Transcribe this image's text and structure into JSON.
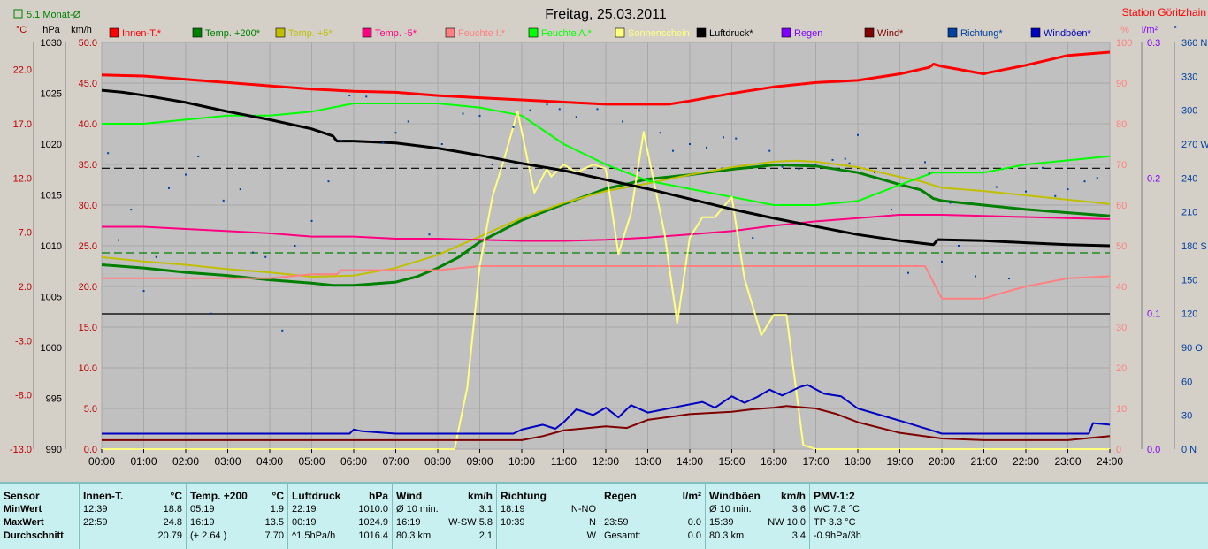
{
  "chart_data": {
    "type": "line",
    "title": "Freitag, 25.03.2011",
    "station": "Station Göritzhain",
    "monthly_avg_label": "5.1 Monat-Ø",
    "x_ticks": [
      "00:00",
      "01:00",
      "02:00",
      "03:00",
      "04:00",
      "05:00",
      "06:00",
      "07:00",
      "08:00",
      "09:00",
      "10:00",
      "11:00",
      "12:00",
      "13:00",
      "14:00",
      "15:00",
      "16:00",
      "17:00",
      "18:00",
      "19:00",
      "20:00",
      "21:00",
      "22:00",
      "23:00",
      "24:00"
    ],
    "axes": {
      "celsius": {
        "unit": "°C",
        "ticks": [
          "22.0",
          "17.0",
          "12.0",
          "7.0",
          "2.0",
          "-3.0",
          "-8.0",
          "-13.0"
        ],
        "range": [
          -13,
          24.5
        ]
      },
      "hpa": {
        "unit": "hPa",
        "ticks": [
          "1030",
          "1025",
          "1020",
          "1015",
          "1010",
          "1005",
          "1000",
          "995",
          "990"
        ],
        "range": [
          990,
          1030
        ]
      },
      "kmh": {
        "unit": "km/h",
        "ticks": [
          "50.0",
          "45.0",
          "40.0",
          "35.0",
          "30.0",
          "25.0",
          "20.0",
          "15.0",
          "10.0",
          "5.0",
          "0.0"
        ],
        "range": [
          0,
          50
        ]
      },
      "percent": {
        "unit": "%",
        "ticks": [
          "100",
          "90",
          "80",
          "70",
          "60",
          "50",
          "40",
          "30",
          "20",
          "10",
          "0"
        ],
        "range": [
          0,
          100
        ]
      },
      "rain": {
        "unit": "l/m²",
        "ticks": [
          "0.3",
          "0.2",
          "0.1",
          "0.0"
        ],
        "range": [
          0,
          0.3
        ]
      },
      "direction": {
        "unit": "°",
        "ticks": [
          "360 N",
          "330",
          "300",
          "270 W",
          "240",
          "210",
          "180 S",
          "150",
          "120",
          "90 O",
          "60",
          "30",
          "0 N"
        ],
        "range": [
          0,
          360
        ]
      }
    },
    "legend": [
      {
        "name": "Innen-T.*",
        "color": "#ff0000"
      },
      {
        "name": "Temp. +200*",
        "color": "#008000"
      },
      {
        "name": "Temp. +5*",
        "color": "#c0c000"
      },
      {
        "name": "Temp. -5*",
        "color": "#ff0080"
      },
      {
        "name": "Feuchte I.*",
        "color": "#ff8080"
      },
      {
        "name": "Feuchte A.*",
        "color": "#00ff00"
      },
      {
        "name": "Sonnenschein",
        "color": "#ffff80"
      },
      {
        "name": "Luftdruck*",
        "color": "#000000"
      },
      {
        "name": "Regen",
        "color": "#8000ff"
      },
      {
        "name": "Wind*",
        "color": "#800000"
      },
      {
        "name": "Richtung*",
        "color": "#0040a0"
      },
      {
        "name": "Windböen*",
        "color": "#0000c0"
      }
    ],
    "reference_lines": [
      {
        "axis": "celsius",
        "value": 12.9,
        "color": "#000000",
        "style": "dashed"
      },
      {
        "axis": "celsius",
        "value": 5.1,
        "color": "#008000",
        "style": "dashed"
      }
    ],
    "series": [
      {
        "name": "Innen-T.*",
        "axis": "celsius",
        "color": "#ff0000",
        "width": 3,
        "x": [
          0,
          1,
          2,
          3,
          4,
          5,
          6,
          7,
          8,
          9,
          10,
          11,
          12,
          13,
          13.5,
          14,
          15,
          16,
          17,
          18,
          19,
          19.7,
          19.8,
          20,
          21,
          21.1,
          22,
          23,
          24
        ],
        "values": [
          21.5,
          21.4,
          21.1,
          20.8,
          20.5,
          20.2,
          20.0,
          19.9,
          19.6,
          19.4,
          19.2,
          19.0,
          18.8,
          18.8,
          18.8,
          19.1,
          19.8,
          20.4,
          20.8,
          21.0,
          21.6,
          22.2,
          22.5,
          22.3,
          21.6,
          21.7,
          22.4,
          23.3,
          23.6
        ]
      },
      {
        "name": "Temp. +200*",
        "axis": "celsius",
        "color": "#008000",
        "width": 3,
        "x": [
          0,
          1,
          2,
          3,
          4,
          5,
          5.5,
          6,
          7,
          7.5,
          8,
          8.5,
          9,
          10,
          11,
          12,
          13,
          14,
          15,
          16,
          16.2,
          17,
          18,
          19,
          19.5,
          19.8,
          20,
          21,
          22,
          23,
          24
        ],
        "values": [
          4.0,
          3.7,
          3.3,
          3.0,
          2.6,
          2.3,
          2.1,
          2.1,
          2.4,
          2.9,
          3.7,
          4.7,
          6.1,
          8.1,
          9.6,
          11.0,
          11.9,
          12.3,
          12.8,
          13.2,
          13.2,
          13.1,
          12.5,
          11.4,
          10.9,
          10.1,
          9.9,
          9.5,
          9.1,
          8.8,
          8.5
        ]
      },
      {
        "name": "Temp. +5*",
        "axis": "celsius",
        "color": "#c0c000",
        "width": 2,
        "x": [
          0,
          1,
          2,
          3,
          4,
          5,
          6,
          7,
          8,
          9,
          10,
          11,
          12,
          13,
          14,
          15,
          16,
          16.5,
          17,
          18,
          19,
          19.5,
          20,
          21,
          22,
          23,
          24
        ],
        "values": [
          4.7,
          4.3,
          4.0,
          3.6,
          3.3,
          2.9,
          3.0,
          3.7,
          4.9,
          6.6,
          8.3,
          9.7,
          10.8,
          11.5,
          12.3,
          13.0,
          13.5,
          13.6,
          13.5,
          13.0,
          12.1,
          11.7,
          11.1,
          10.8,
          10.4,
          10.0,
          9.6
        ]
      },
      {
        "name": "Temp. -5*",
        "axis": "celsius",
        "color": "#ff0080",
        "width": 2,
        "x": [
          0,
          1,
          2,
          3,
          4,
          5,
          6,
          7,
          8,
          9,
          10,
          11,
          12,
          13,
          14,
          15,
          16,
          17,
          18,
          19,
          20,
          21,
          22,
          23,
          24
        ],
        "values": [
          7.5,
          7.5,
          7.3,
          7.1,
          6.9,
          6.6,
          6.6,
          6.4,
          6.4,
          6.3,
          6.2,
          6.2,
          6.3,
          6.5,
          6.8,
          7.1,
          7.6,
          8.0,
          8.3,
          8.6,
          8.6,
          8.5,
          8.4,
          8.3,
          8.2
        ]
      },
      {
        "name": "Feuchte I.*",
        "axis": "percent",
        "color": "#ff8080",
        "width": 2,
        "x": [
          0,
          1,
          2,
          3,
          4,
          5,
          5.6,
          5.7,
          6,
          7,
          8,
          9,
          10,
          11,
          12,
          13,
          14,
          15,
          16,
          17,
          18,
          19,
          19.6,
          19.8,
          20,
          21,
          21.3,
          22,
          23,
          24
        ],
        "values": [
          42,
          42,
          42,
          42,
          42,
          43,
          43,
          44,
          44,
          44,
          44,
          45,
          45,
          45,
          45,
          45,
          45,
          45,
          45,
          45,
          45,
          45,
          45,
          41,
          37,
          37,
          38,
          40,
          42,
          42.5
        ]
      },
      {
        "name": "Feuchte A.*",
        "axis": "percent",
        "color": "#00ff00",
        "width": 2,
        "x": [
          0,
          1,
          2,
          3,
          4,
          5,
          6,
          7,
          8,
          9,
          9.5,
          10,
          11,
          12,
          13,
          14,
          15,
          16,
          17,
          18,
          19,
          19.8,
          20,
          21,
          22,
          23,
          24
        ],
        "values": [
          80,
          80,
          81,
          82,
          82,
          83,
          85,
          85,
          85,
          84,
          83,
          82,
          75,
          70,
          66,
          64,
          62,
          60,
          60,
          61,
          65,
          68,
          68,
          68,
          70,
          71,
          72
        ]
      },
      {
        "name": "Sonnenschein",
        "axis": "percent",
        "color": "#ffff80",
        "width": 2,
        "x": [
          0,
          8.4,
          8.7,
          9,
          9.3,
          9.6,
          9.9,
          10.3,
          10.6,
          10.7,
          11,
          11.3,
          11.7,
          12,
          12.3,
          12.6,
          12.9,
          13.2,
          13.4,
          13.7,
          14,
          14.3,
          14.6,
          15,
          15.3,
          15.7,
          16,
          16.3,
          16.7,
          17,
          24
        ],
        "values": [
          0,
          0,
          15,
          45,
          62,
          72,
          83,
          63,
          69,
          67,
          70,
          68,
          70,
          69,
          48,
          58,
          78,
          63,
          53,
          31,
          52,
          57,
          57,
          62,
          42,
          28,
          33,
          33,
          1,
          0,
          0
        ]
      },
      {
        "name": "Luftdruck*",
        "axis": "hpa",
        "color": "#000000",
        "width": 3,
        "x": [
          0,
          0.5,
          1,
          2,
          3,
          4,
          5,
          5.5,
          5.6,
          6,
          7,
          8,
          9,
          10,
          11,
          12,
          13,
          14,
          15,
          16,
          17,
          18,
          19,
          19.8,
          19.9,
          21,
          22,
          23,
          24
        ],
        "values": [
          1025.3,
          1025.1,
          1024.8,
          1024.1,
          1023.2,
          1022.4,
          1021.5,
          1020.8,
          1020.3,
          1020.3,
          1020.1,
          1019.6,
          1018.9,
          1018.1,
          1017.4,
          1016.5,
          1015.6,
          1014.6,
          1013.6,
          1012.7,
          1011.9,
          1011.1,
          1010.5,
          1010.1,
          1010.6,
          1010.5,
          1010.3,
          1010.1,
          1010.0
        ]
      },
      {
        "name": "Wind*",
        "axis": "kmh",
        "color": "#800000",
        "width": 2,
        "x": [
          0,
          1,
          2,
          3,
          4,
          5,
          6,
          7,
          8,
          9,
          10,
          10.5,
          11,
          12,
          12.5,
          13,
          14,
          15,
          15.5,
          16,
          16.3,
          17,
          17.5,
          18,
          19,
          20,
          21,
          22,
          23,
          24
        ],
        "values": [
          1.1,
          1.1,
          1.1,
          1.1,
          1.1,
          1.1,
          1.1,
          1.1,
          1.1,
          1.1,
          1.1,
          1.6,
          2.3,
          2.8,
          2.6,
          3.6,
          4.3,
          4.6,
          4.9,
          5.1,
          5.3,
          5.0,
          4.3,
          3.3,
          2.0,
          1.3,
          1.1,
          1.1,
          1.1,
          1.6
        ]
      },
      {
        "name": "Windböen*",
        "axis": "kmh",
        "color": "#0000c0",
        "width": 2,
        "x": [
          0,
          5.9,
          6,
          6.2,
          7,
          8,
          9,
          9.8,
          10,
          10.5,
          10.8,
          11,
          11.3,
          11.7,
          12,
          12.3,
          12.6,
          13,
          13.5,
          14,
          14.3,
          14.6,
          15,
          15.3,
          15.6,
          15.9,
          16.2,
          16.6,
          16.8,
          17.2,
          17.6,
          18,
          19,
          19.7,
          20,
          21,
          22,
          23,
          23.5,
          23.6,
          24
        ],
        "values": [
          1.9,
          1.9,
          2.4,
          2.2,
          1.9,
          1.9,
          1.9,
          1.9,
          2.4,
          3.0,
          2.5,
          3.3,
          4.9,
          4.2,
          5.1,
          3.9,
          5.4,
          4.5,
          5.0,
          5.5,
          5.8,
          5.1,
          6.5,
          5.7,
          6.4,
          7.3,
          6.6,
          7.6,
          7.9,
          6.8,
          6.5,
          5.0,
          3.5,
          2.4,
          1.9,
          1.9,
          1.9,
          1.9,
          1.9,
          3.2,
          3.0
        ]
      },
      {
        "name": "Richtung*",
        "axis": "direction",
        "color": "#0040a0",
        "type": "scatter",
        "x": [
          0.15,
          0.4,
          0.7,
          1.0,
          1.3,
          1.6,
          2.0,
          2.3,
          2.6,
          2.9,
          3.3,
          3.6,
          3.9,
          4.3,
          4.6,
          5.0,
          5.4,
          5.7,
          5.9,
          6.3,
          6.7,
          7.0,
          7.3,
          7.8,
          8.1,
          8.6,
          9.0,
          9.3,
          9.8,
          10.2,
          10.6,
          10.9,
          11.3,
          11.8,
          12.4,
          12.8,
          13.3,
          13.6,
          14.0,
          14.4,
          14.8,
          15.1,
          15.5,
          15.9,
          16.2,
          16.6,
          17.0,
          17.4,
          17.7,
          17.8,
          18.0,
          18.4,
          18.8,
          19.2,
          19.6,
          19.7,
          19.9,
          20.0,
          20.2,
          20.4,
          20.8,
          21.3,
          21.6,
          22.0,
          22.4,
          22.7,
          23.0,
          23.4,
          23.7
        ],
        "values": [
          262,
          185,
          212,
          140,
          170,
          231,
          243,
          259,
          120,
          220,
          230,
          174,
          170,
          105,
          180,
          202,
          237,
          273,
          313,
          312,
          271,
          280,
          290,
          190,
          270,
          297,
          295,
          252,
          285,
          300,
          305,
          301,
          294,
          301,
          290,
          247,
          280,
          264,
          270,
          267,
          276,
          275,
          187,
          264,
          250,
          248,
          252,
          256,
          257,
          253,
          278,
          245,
          212,
          156,
          254,
          244,
          185,
          166,
          218,
          180,
          153,
          232,
          151,
          228,
          249,
          224,
          230,
          237,
          240
        ]
      }
    ]
  },
  "stats": {
    "columns": [
      {
        "title": "Sensor",
        "unit": "",
        "rows": [
          {
            "a": "MinWert",
            "b": ""
          },
          {
            "a": "MaxWert",
            "b": ""
          },
          {
            "a": "Durchschnitt",
            "b": ""
          }
        ]
      },
      {
        "title": "Innen-T.",
        "unit": "°C",
        "rows": [
          {
            "a": "12:39",
            "b": "18.8"
          },
          {
            "a": "22:59",
            "b": "24.8"
          },
          {
            "a": "",
            "b": "20.79"
          }
        ]
      },
      {
        "title": "Temp. +200",
        "unit": "°C",
        "rows": [
          {
            "a": "05:19",
            "b": "1.9"
          },
          {
            "a": "16:19",
            "b": "13.5"
          },
          {
            "a": "(+ 2.64 )",
            "b": "7.70"
          }
        ]
      },
      {
        "title": "Luftdruck",
        "unit": "hPa",
        "rows": [
          {
            "a": "22:19",
            "b": "1010.0"
          },
          {
            "a": "00:19",
            "b": "1024.9"
          },
          {
            "a": "^1.5hPa/h",
            "b": "1016.4"
          }
        ]
      },
      {
        "title": "Wind",
        "unit": "km/h",
        "rows": [
          {
            "a": "Ø 10 min.",
            "b": "3.1"
          },
          {
            "a": "16:19",
            "b": "W-SW 5.8"
          },
          {
            "a": "80.3 km",
            "b": "2.1"
          }
        ]
      },
      {
        "title": "Richtung",
        "unit": "",
        "rows": [
          {
            "a": "18:19",
            "b": "N-NO"
          },
          {
            "a": "10:39",
            "b": "N"
          },
          {
            "a": "",
            "b": "W"
          }
        ]
      },
      {
        "title": "Regen",
        "unit": "l/m²",
        "rows": [
          {
            "a": "",
            "b": ""
          },
          {
            "a": "23:59",
            "b": "0.0"
          },
          {
            "a": "Gesamt:",
            "b": "0.0"
          }
        ]
      },
      {
        "title": "Windböen",
        "unit": "km/h",
        "rows": [
          {
            "a": "Ø 10 min.",
            "b": "3.6"
          },
          {
            "a": "15:39",
            "b": "NW 10.0"
          },
          {
            "a": "80.3 km",
            "b": "3.4"
          }
        ]
      },
      {
        "title": "PMV-1:2",
        "unit": "",
        "rows": [
          {
            "a": "WC 7.8 °C",
            "b": ""
          },
          {
            "a": "TP 3.3 °C",
            "b": ""
          },
          {
            "a": "-0.9hPa/3h",
            "b": ""
          }
        ]
      }
    ]
  }
}
